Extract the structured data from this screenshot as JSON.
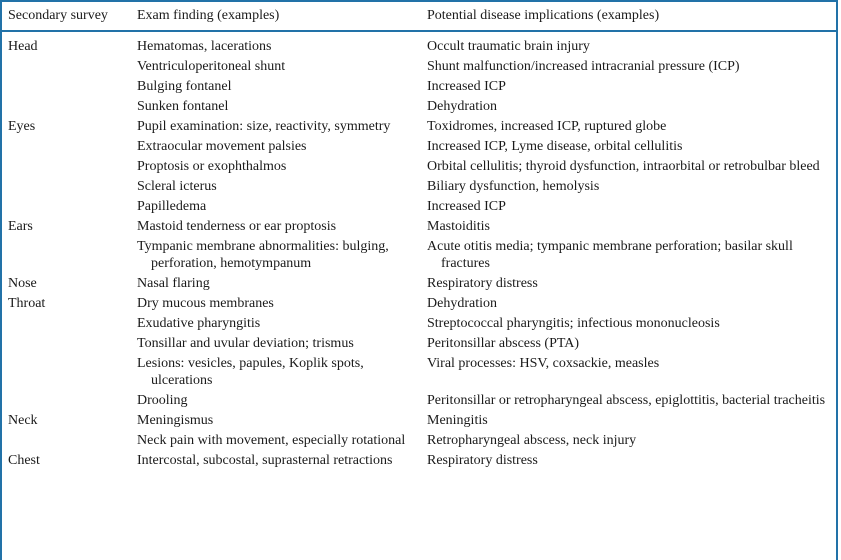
{
  "headers": [
    "Secondary survey",
    "Exam finding (examples)",
    "Potential disease implications (examples)"
  ],
  "rows": [
    {
      "survey": "Head",
      "finding": "Hematomas, lacerations",
      "implication": "Occult traumatic brain injury"
    },
    {
      "survey": "",
      "finding": "Ventriculoperitoneal shunt",
      "implication": "Shunt malfunction/increased intracranial pressure (ICP)"
    },
    {
      "survey": "",
      "finding": "Bulging fontanel",
      "implication": "Increased ICP"
    },
    {
      "survey": "",
      "finding": "Sunken fontanel",
      "implication": "Dehydration"
    },
    {
      "survey": "Eyes",
      "finding": "Pupil examination: size, reactivity, symmetry",
      "implication": "Toxidromes, increased ICP, ruptured globe"
    },
    {
      "survey": "",
      "finding": "Extraocular movement palsies",
      "implication": "Increased ICP, Lyme disease, orbital cellulitis"
    },
    {
      "survey": "",
      "finding": "Proptosis or exophthalmos",
      "implication": "Orbital cellulitis; thyroid dysfunction, intraorbital or retrobulbar bleed"
    },
    {
      "survey": "",
      "finding": "Scleral icterus",
      "implication": "Biliary dysfunction, hemolysis"
    },
    {
      "survey": "",
      "finding": "Papilledema",
      "implication": "Increased ICP"
    },
    {
      "survey": "Ears",
      "finding": "Mastoid tenderness or ear proptosis",
      "implication": "Mastoiditis"
    },
    {
      "survey": "",
      "finding": "Tympanic membrane abnormalities: bulging, perforation, hemotympanum",
      "implication": "Acute otitis media; tympanic membrane perforation; basilar skull fractures"
    },
    {
      "survey": "Nose",
      "finding": "Nasal flaring",
      "implication": "Respiratory distress"
    },
    {
      "survey": "Throat",
      "finding": "Dry mucous membranes",
      "implication": "Dehydration"
    },
    {
      "survey": "",
      "finding": "Exudative pharyngitis",
      "implication": "Streptococcal pharyngitis; infectious mononucleosis"
    },
    {
      "survey": "",
      "finding": "Tonsillar and uvular deviation; trismus",
      "implication": "Peritonsillar abscess (PTA)"
    },
    {
      "survey": "",
      "finding": "Lesions: vesicles, papules, Koplik spots, ulcerations",
      "implication": "Viral processes: HSV, coxsackie, measles"
    },
    {
      "survey": "",
      "finding": "Drooling",
      "implication": "Peritonsillar or retropharyngeal abscess, epiglottitis, bacterial tracheitis"
    },
    {
      "survey": "Neck",
      "finding": "Meningismus",
      "implication": "Meningitis"
    },
    {
      "survey": "",
      "finding": "Neck pain with movement, especially rotational",
      "implication": "Retropharyngeal abscess, neck injury"
    },
    {
      "survey": "Chest",
      "finding": "Intercostal, subcostal, suprasternal retractions",
      "implication": "Respiratory distress"
    }
  ],
  "colors": {
    "border": "#2272a8"
  }
}
